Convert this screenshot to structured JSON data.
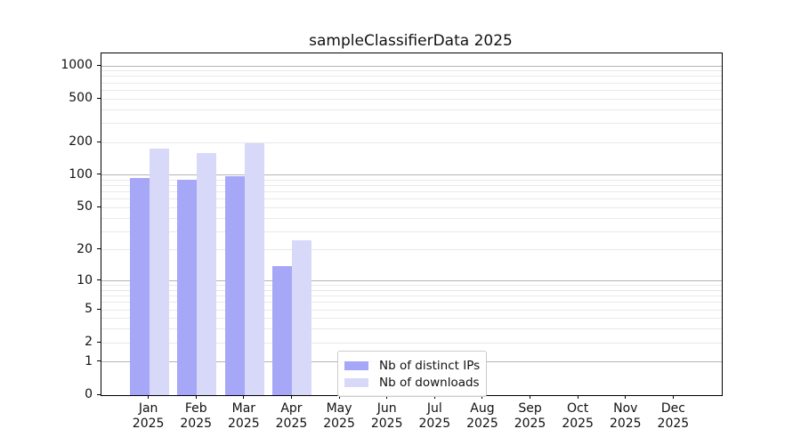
{
  "chart_data": {
    "type": "bar",
    "title": "sampleClassifierData 2025",
    "categories": [
      {
        "month": "Jan",
        "year": "2025"
      },
      {
        "month": "Feb",
        "year": "2025"
      },
      {
        "month": "Mar",
        "year": "2025"
      },
      {
        "month": "Apr",
        "year": "2025"
      },
      {
        "month": "May",
        "year": "2025"
      },
      {
        "month": "Jun",
        "year": "2025"
      },
      {
        "month": "Jul",
        "year": "2025"
      },
      {
        "month": "Aug",
        "year": "2025"
      },
      {
        "month": "Sep",
        "year": "2025"
      },
      {
        "month": "Oct",
        "year": "2025"
      },
      {
        "month": "Nov",
        "year": "2025"
      },
      {
        "month": "Dec",
        "year": "2025"
      }
    ],
    "series": [
      {
        "name": "Nb of distinct IPs",
        "color": "#a7a7f8",
        "values": [
          94,
          90,
          97,
          14,
          null,
          null,
          null,
          null,
          null,
          null,
          null,
          null
        ]
      },
      {
        "name": "Nb of downloads",
        "color": "#d8d8f9",
        "values": [
          175,
          160,
          196,
          25,
          null,
          null,
          null,
          null,
          null,
          null,
          null,
          null
        ]
      }
    ],
    "yscale": "log1p",
    "yticks": [
      0,
      1,
      2,
      5,
      10,
      20,
      50,
      100,
      200,
      500,
      1000
    ],
    "ylim": [
      0,
      1300
    ],
    "grid": true,
    "legend_position": "inside lower-center",
    "colors": {
      "major_grid": "#b5b5b5",
      "minor_grid": "#e9e9e9",
      "spine": "#000000",
      "text": "#111111"
    }
  }
}
